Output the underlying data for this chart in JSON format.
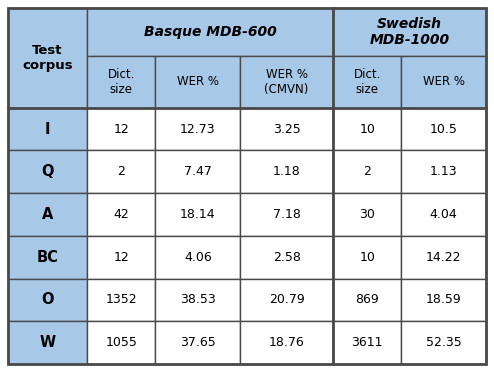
{
  "header1_text": "Basque MDB-600",
  "header2_text": "Swedish\nMDB-1000",
  "row_header": "Test\ncorpus",
  "col_headers": [
    "Dict.\nsize",
    "WER %",
    "WER %\n(CMVN)",
    "Dict.\nsize",
    "WER %"
  ],
  "row_labels": [
    "I",
    "Q",
    "A",
    "BC",
    "O",
    "W"
  ],
  "data": [
    [
      "12",
      "12.73",
      "3.25",
      "10",
      "10.5"
    ],
    [
      "2",
      "7.47",
      "1.18",
      "2",
      "1.13"
    ],
    [
      "42",
      "18.14",
      "7.18",
      "30",
      "4.04"
    ],
    [
      "12",
      "4.06",
      "2.58",
      "10",
      "14.22"
    ],
    [
      "1352",
      "38.53",
      "20.79",
      "869",
      "18.59"
    ],
    [
      "1055",
      "37.65",
      "18.76",
      "3611",
      "52.35"
    ]
  ],
  "header_bg": "#a8c8e8",
  "data_bg": "#ffffff",
  "border_color": "#4a4a4a",
  "fig_width": 4.94,
  "fig_height": 3.72,
  "dpi": 100
}
